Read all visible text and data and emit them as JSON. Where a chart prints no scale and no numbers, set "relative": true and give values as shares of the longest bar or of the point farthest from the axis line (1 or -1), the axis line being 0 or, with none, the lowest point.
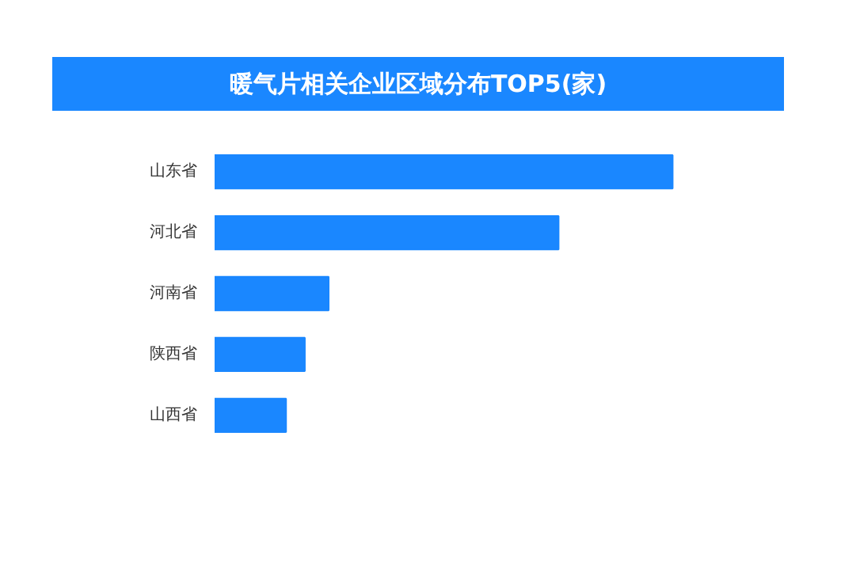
{
  "chart_data": {
    "type": "bar",
    "orientation": "horizontal",
    "relative": true,
    "title": "暖气片相关企业区域分布TOP5(家)",
    "categories": [
      "山东省",
      "河北省",
      "河南省",
      "陕西省",
      "山西省"
    ],
    "values": [
      1,
      0.751,
      0.249,
      0.197,
      0.156
    ],
    "color": "#1a87ff",
    "grid": false
  }
}
